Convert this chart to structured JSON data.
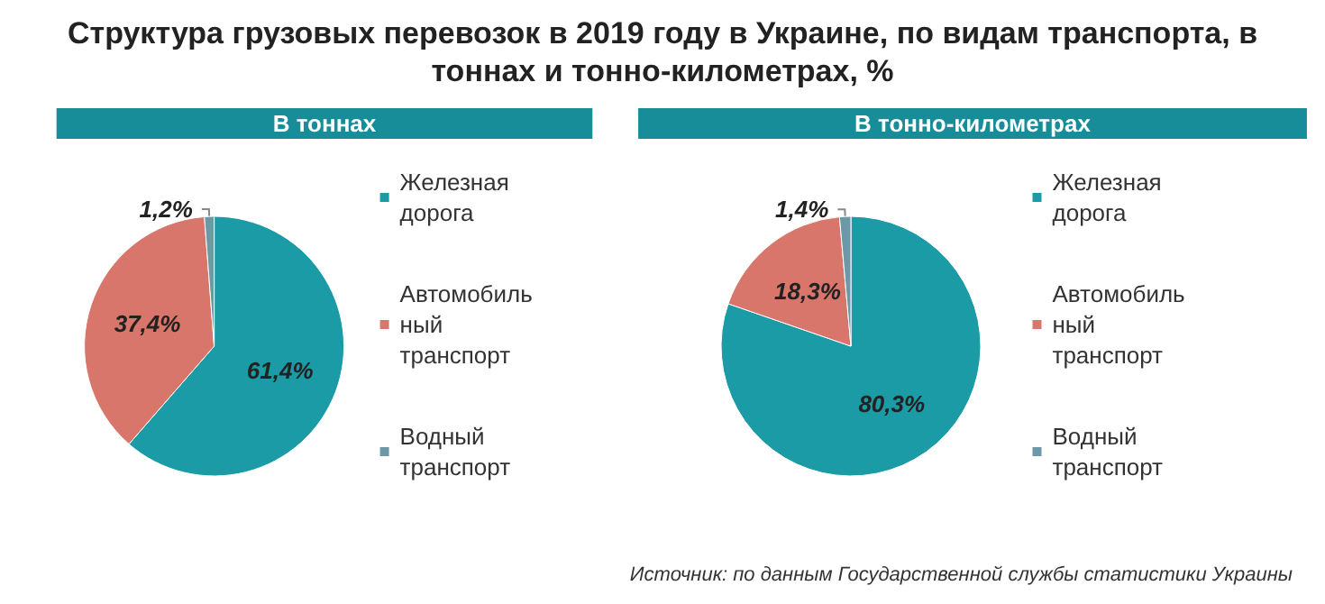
{
  "chart_data": [
    {
      "type": "pie",
      "title": "Структура грузовых перевозок в 2019 году в Украине, по видам транспорта, в тоннах и тонно-километрах, %",
      "subtitle": "В тоннах",
      "categories": [
        "Железная дорога",
        "Автомобильный транспорт",
        "Водный транспорт"
      ],
      "values": [
        61.4,
        37.4,
        1.2
      ],
      "colors": [
        "#1a9ba6",
        "#d9766b",
        "#6d98a8"
      ],
      "value_labels": [
        "61,4%",
        "37,4%",
        "1,2%"
      ],
      "legend": "right"
    },
    {
      "type": "pie",
      "subtitle": "В тонно-километрах",
      "categories": [
        "Железная дорога",
        "Автомобильный транспорт",
        "Водный транспорт"
      ],
      "values": [
        80.3,
        18.3,
        1.4
      ],
      "colors": [
        "#1a9ba6",
        "#d9766b",
        "#6d98a8"
      ],
      "value_labels": [
        "80,3%",
        "18,3%",
        "1,4%"
      ],
      "legend": "right",
      "annotations": [
        "Источник: по данным Государственной службы статистики Украины"
      ]
    }
  ]
}
